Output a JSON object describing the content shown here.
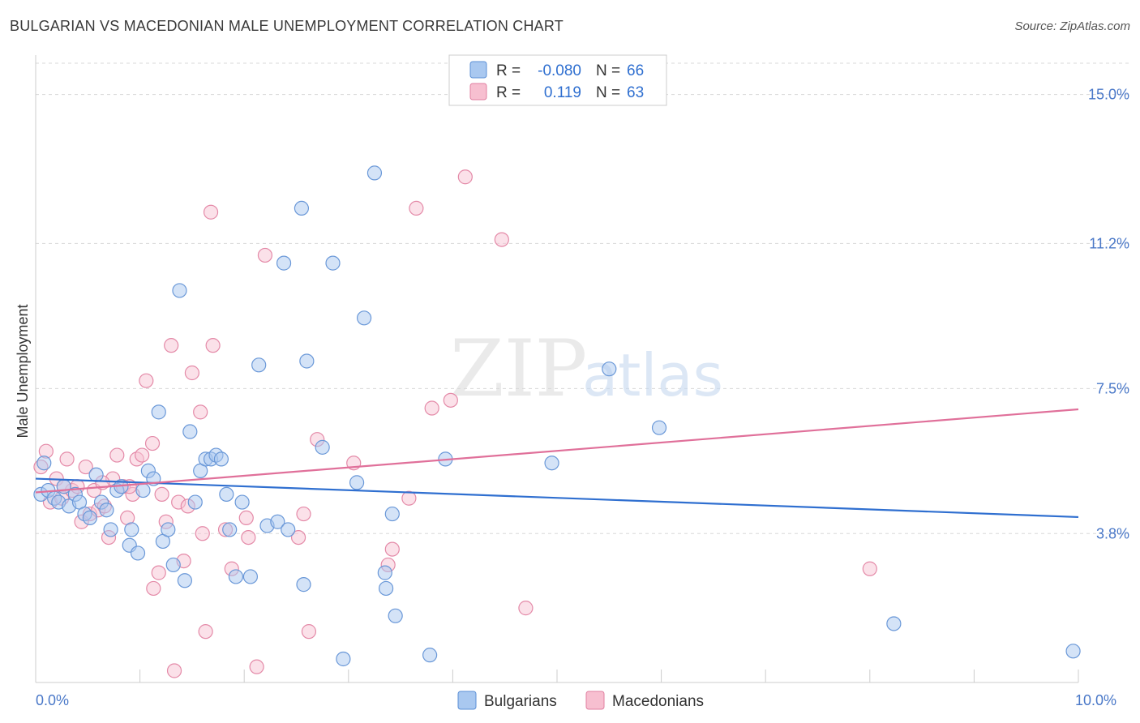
{
  "header": {
    "title": "BULGARIAN VS MACEDONIAN MALE UNEMPLOYMENT CORRELATION CHART",
    "source": "Source: ZipAtlas.com"
  },
  "watermark": {
    "zip": "ZIP",
    "atlas": "atlas"
  },
  "legend": {
    "r_label": "R =",
    "n_label": "N =",
    "rows": [
      {
        "name": "Bulgarians",
        "r": "-0.080",
        "n": "66",
        "fill": "#a9c8f0",
        "stroke": "#5b8fd6"
      },
      {
        "name": "Macedonians",
        "r": "0.119",
        "n": "63",
        "fill": "#f7bfd0",
        "stroke": "#e07fa0"
      }
    ]
  },
  "bottom_legend": {
    "items": [
      "Bulgarians",
      "Macedonians"
    ]
  },
  "colors": {
    "blue_line": "#2f6fd0",
    "pink_line": "#e0709a",
    "blue_fill": "#a9c8f0",
    "blue_stroke": "#6a98d8",
    "pink_fill": "#f7c3d3",
    "pink_stroke": "#e48aa8",
    "grid": "#d8d8d8"
  },
  "chart_data": {
    "type": "scatter",
    "title": "BULGARIAN VS MACEDONIAN MALE UNEMPLOYMENT CORRELATION CHART",
    "xlabel": "",
    "ylabel": "Male Unemployment",
    "xlim": [
      0,
      10
    ],
    "ylim": [
      0,
      15.8
    ],
    "x_tick_labels": [
      "0.0%",
      "10.0%"
    ],
    "y_ticks": [
      3.8,
      7.5,
      11.2,
      15.0
    ],
    "y_tick_labels": [
      "3.8%",
      "7.5%",
      "11.2%",
      "15.0%"
    ],
    "grid": true,
    "series": [
      {
        "name": "Bulgarians",
        "trend": {
          "x": [
            0,
            10
          ],
          "y": [
            5.2,
            4.22
          ]
        },
        "points": [
          {
            "x": 0.05,
            "y": 4.8
          },
          {
            "x": 0.12,
            "y": 4.9
          },
          {
            "x": 0.18,
            "y": 4.7
          },
          {
            "x": 0.22,
            "y": 4.6
          },
          {
            "x": 0.27,
            "y": 5.0
          },
          {
            "x": 0.32,
            "y": 4.5
          },
          {
            "x": 0.38,
            "y": 4.8
          },
          {
            "x": 0.42,
            "y": 4.6
          },
          {
            "x": 0.47,
            "y": 4.3
          },
          {
            "x": 0.52,
            "y": 4.2
          },
          {
            "x": 0.58,
            "y": 5.3
          },
          {
            "x": 0.63,
            "y": 4.6
          },
          {
            "x": 0.68,
            "y": 4.4
          },
          {
            "x": 0.72,
            "y": 3.9
          },
          {
            "x": 0.78,
            "y": 4.9
          },
          {
            "x": 0.82,
            "y": 5.0
          },
          {
            "x": 0.9,
            "y": 3.5
          },
          {
            "x": 0.92,
            "y": 3.9
          },
          {
            "x": 0.98,
            "y": 3.3
          },
          {
            "x": 1.03,
            "y": 4.9
          },
          {
            "x": 1.08,
            "y": 5.4
          },
          {
            "x": 1.13,
            "y": 5.2
          },
          {
            "x": 1.18,
            "y": 6.9
          },
          {
            "x": 1.22,
            "y": 3.6
          },
          {
            "x": 1.27,
            "y": 3.9
          },
          {
            "x": 1.32,
            "y": 3.0
          },
          {
            "x": 1.38,
            "y": 10.0
          },
          {
            "x": 1.43,
            "y": 2.6
          },
          {
            "x": 1.48,
            "y": 6.4
          },
          {
            "x": 1.53,
            "y": 4.6
          },
          {
            "x": 1.58,
            "y": 5.4
          },
          {
            "x": 1.63,
            "y": 5.7
          },
          {
            "x": 1.68,
            "y": 5.7
          },
          {
            "x": 1.73,
            "y": 5.8
          },
          {
            "x": 1.78,
            "y": 5.7
          },
          {
            "x": 1.83,
            "y": 4.8
          },
          {
            "x": 1.86,
            "y": 3.9
          },
          {
            "x": 1.92,
            "y": 2.7
          },
          {
            "x": 1.98,
            "y": 4.6
          },
          {
            "x": 2.06,
            "y": 2.7
          },
          {
            "x": 2.14,
            "y": 8.1
          },
          {
            "x": 2.22,
            "y": 4.0
          },
          {
            "x": 2.32,
            "y": 4.1
          },
          {
            "x": 2.42,
            "y": 3.9
          },
          {
            "x": 2.55,
            "y": 12.1
          },
          {
            "x": 2.57,
            "y": 2.5
          },
          {
            "x": 2.6,
            "y": 8.2
          },
          {
            "x": 2.75,
            "y": 6.0
          },
          {
            "x": 2.95,
            "y": 0.6
          },
          {
            "x": 3.08,
            "y": 5.1
          },
          {
            "x": 3.15,
            "y": 9.3
          },
          {
            "x": 3.25,
            "y": 13.0
          },
          {
            "x": 3.35,
            "y": 2.8
          },
          {
            "x": 3.36,
            "y": 2.4
          },
          {
            "x": 3.42,
            "y": 4.3
          },
          {
            "x": 3.45,
            "y": 1.7
          },
          {
            "x": 3.78,
            "y": 0.7
          },
          {
            "x": 3.93,
            "y": 5.7
          },
          {
            "x": 4.95,
            "y": 5.6
          },
          {
            "x": 5.5,
            "y": 8.0
          },
          {
            "x": 5.98,
            "y": 6.5
          },
          {
            "x": 8.23,
            "y": 1.5
          },
          {
            "x": 9.95,
            "y": 0.8
          },
          {
            "x": 2.38,
            "y": 10.7
          },
          {
            "x": 2.85,
            "y": 10.7
          },
          {
            "x": 0.08,
            "y": 5.6
          }
        ]
      },
      {
        "name": "Macedonians",
        "trend": {
          "x": [
            0,
            10
          ],
          "y": [
            4.85,
            6.97
          ]
        },
        "points": [
          {
            "x": 0.05,
            "y": 5.5
          },
          {
            "x": 0.1,
            "y": 5.9
          },
          {
            "x": 0.14,
            "y": 4.6
          },
          {
            "x": 0.2,
            "y": 5.2
          },
          {
            "x": 0.25,
            "y": 4.7
          },
          {
            "x": 0.3,
            "y": 5.7
          },
          {
            "x": 0.35,
            "y": 4.9
          },
          {
            "x": 0.4,
            "y": 5.0
          },
          {
            "x": 0.44,
            "y": 4.1
          },
          {
            "x": 0.48,
            "y": 5.5
          },
          {
            "x": 0.52,
            "y": 4.3
          },
          {
            "x": 0.56,
            "y": 4.9
          },
          {
            "x": 0.6,
            "y": 4.4
          },
          {
            "x": 0.66,
            "y": 4.5
          },
          {
            "x": 0.7,
            "y": 3.7
          },
          {
            "x": 0.74,
            "y": 5.2
          },
          {
            "x": 0.78,
            "y": 5.8
          },
          {
            "x": 0.84,
            "y": 5.0
          },
          {
            "x": 0.88,
            "y": 4.2
          },
          {
            "x": 0.93,
            "y": 4.8
          },
          {
            "x": 0.97,
            "y": 5.7
          },
          {
            "x": 1.02,
            "y": 5.8
          },
          {
            "x": 1.06,
            "y": 7.7
          },
          {
            "x": 1.12,
            "y": 6.1
          },
          {
            "x": 1.13,
            "y": 2.4
          },
          {
            "x": 1.18,
            "y": 2.8
          },
          {
            "x": 1.21,
            "y": 4.8
          },
          {
            "x": 1.25,
            "y": 4.1
          },
          {
            "x": 1.3,
            "y": 8.6
          },
          {
            "x": 1.33,
            "y": 0.3
          },
          {
            "x": 1.37,
            "y": 4.6
          },
          {
            "x": 1.42,
            "y": 3.1
          },
          {
            "x": 1.46,
            "y": 4.5
          },
          {
            "x": 1.5,
            "y": 7.9
          },
          {
            "x": 1.58,
            "y": 6.9
          },
          {
            "x": 1.6,
            "y": 3.8
          },
          {
            "x": 1.63,
            "y": 1.3
          },
          {
            "x": 1.68,
            "y": 12.0
          },
          {
            "x": 1.7,
            "y": 8.6
          },
          {
            "x": 1.82,
            "y": 3.9
          },
          {
            "x": 1.88,
            "y": 2.9
          },
          {
            "x": 2.02,
            "y": 4.2
          },
          {
            "x": 2.04,
            "y": 3.7
          },
          {
            "x": 2.12,
            "y": 0.4
          },
          {
            "x": 2.2,
            "y": 10.9
          },
          {
            "x": 2.52,
            "y": 3.7
          },
          {
            "x": 2.57,
            "y": 4.3
          },
          {
            "x": 2.62,
            "y": 1.3
          },
          {
            "x": 2.7,
            "y": 6.2
          },
          {
            "x": 3.05,
            "y": 5.6
          },
          {
            "x": 3.38,
            "y": 3.0
          },
          {
            "x": 3.42,
            "y": 3.4
          },
          {
            "x": 3.58,
            "y": 4.7
          },
          {
            "x": 3.65,
            "y": 12.1
          },
          {
            "x": 3.8,
            "y": 7.0
          },
          {
            "x": 3.98,
            "y": 7.2
          },
          {
            "x": 4.12,
            "y": 12.9
          },
          {
            "x": 4.47,
            "y": 11.3
          },
          {
            "x": 4.7,
            "y": 1.9
          },
          {
            "x": 8.0,
            "y": 2.9
          },
          {
            "x": 0.27,
            "y": 5.0
          },
          {
            "x": 0.64,
            "y": 5.1
          },
          {
            "x": 0.9,
            "y": 5.0
          }
        ]
      }
    ]
  }
}
